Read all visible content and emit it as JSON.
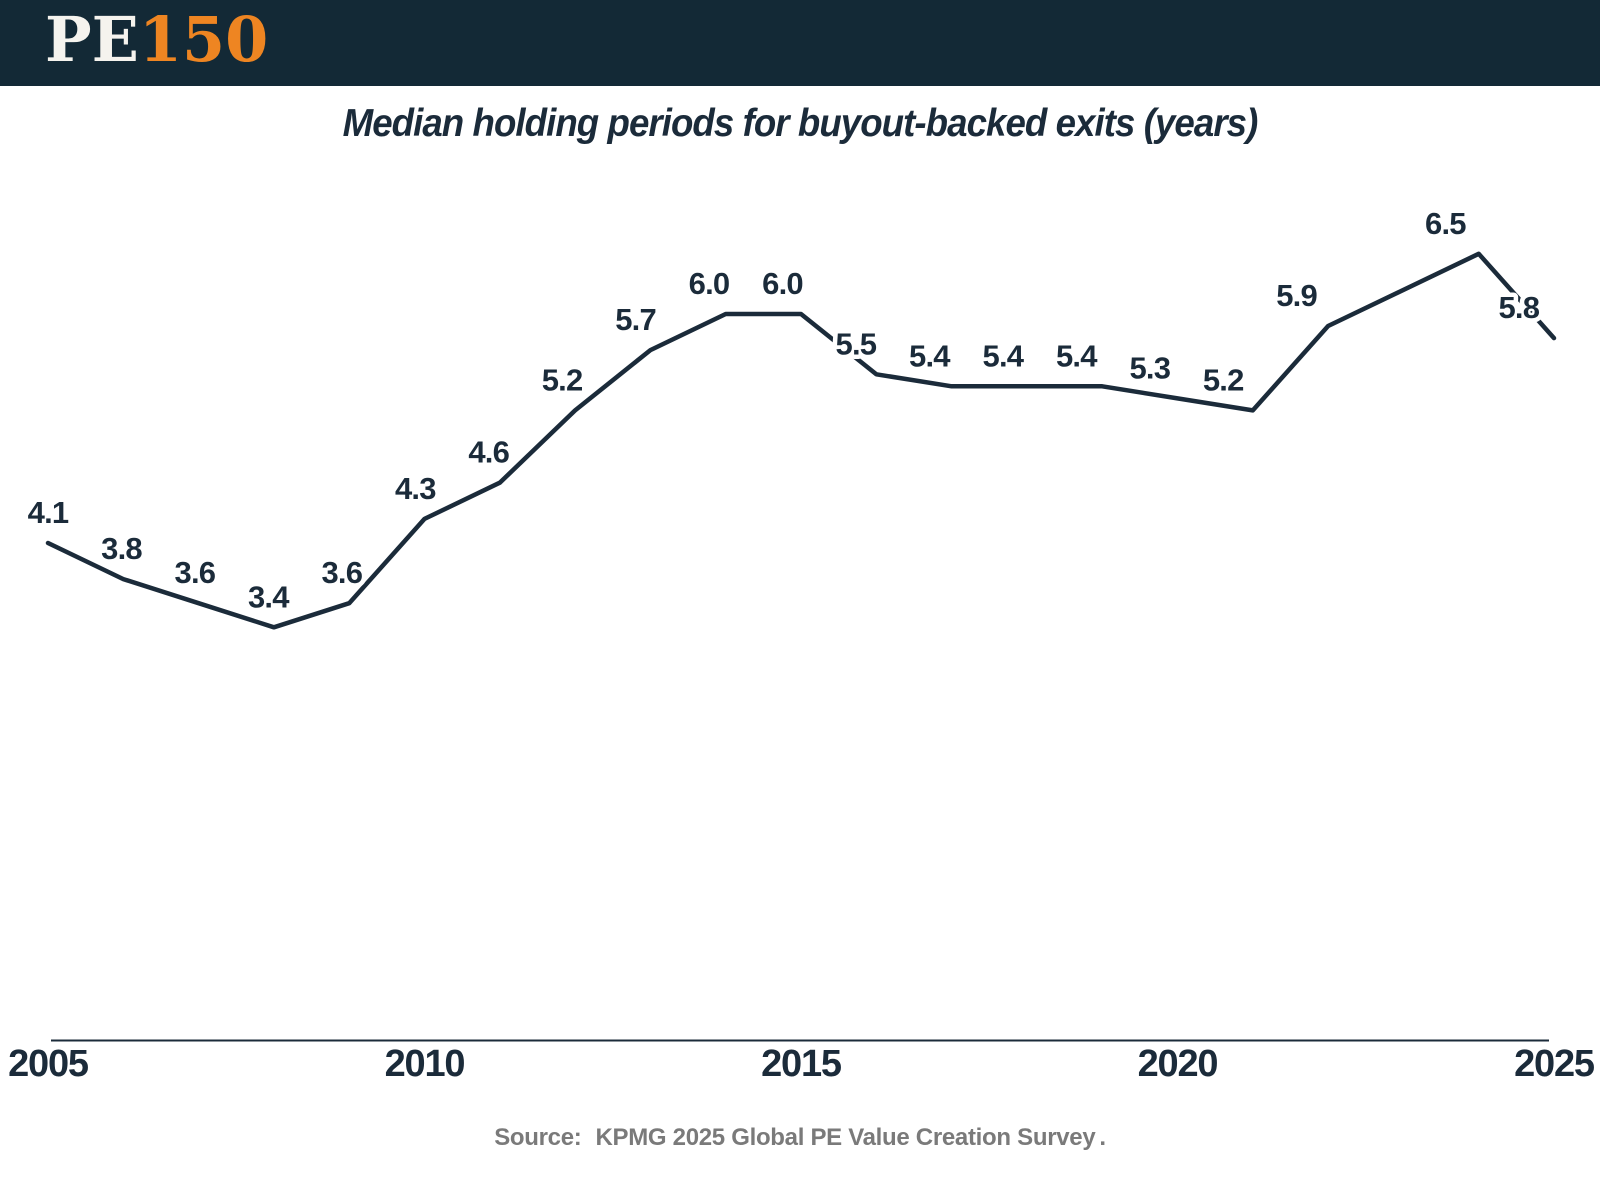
{
  "brand": {
    "prefix": "PE",
    "suffix": "150"
  },
  "header": {
    "background": "#132936",
    "logo_prefix_color": "#f5f3ee",
    "logo_suffix_color": "#ee8522"
  },
  "chart_data": {
    "type": "line",
    "title": "Median holding periods for buyout-backed exits (years)",
    "x": [
      2005,
      2006,
      2007,
      2008,
      2009,
      2010,
      2011,
      2012,
      2013,
      2014,
      2015,
      2016,
      2017,
      2018,
      2019,
      2020,
      2021,
      2022,
      2024,
      2025
    ],
    "values": [
      4.1,
      3.8,
      3.6,
      3.4,
      3.6,
      4.3,
      4.6,
      5.2,
      5.7,
      6.0,
      6.0,
      5.5,
      5.4,
      5.4,
      5.4,
      5.3,
      5.2,
      5.9,
      6.5,
      5.8
    ],
    "point_labels": [
      "4.1",
      "3.8",
      "3.6",
      "3.4",
      "3.6",
      "4.3",
      "4.6",
      "5.2",
      "5.7",
      "6.0",
      "6.0",
      "5.5",
      "5.4",
      "5.4",
      "5.4",
      "5.3",
      "5.2",
      "5.9",
      "6.5",
      "5.8"
    ],
    "x_ticks": [
      "2005",
      "2010",
      "2015",
      "2020",
      "2025"
    ],
    "x_range": [
      2005,
      2025
    ],
    "y_range_shown": [
      3.4,
      6.5
    ],
    "gridlines": false,
    "y_axis_visible": false,
    "legend": false,
    "line_color": "#1b2b3a",
    "label_color": "#1b2b3a",
    "axis_color": "#1b2b3a",
    "tick_label_color": "#1b2b3a"
  },
  "footer": {
    "source_label": "Source:",
    "source_text": "KPMG 2025 Global PE Value Creation Survey",
    "source_period": "."
  }
}
